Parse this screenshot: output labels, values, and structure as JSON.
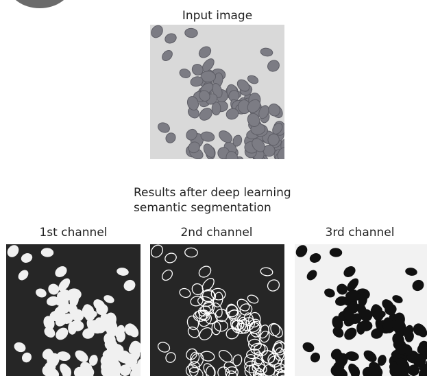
{
  "input_title": "Input image",
  "results_title": [
    "Results after deep learning",
    "semantic segmentation"
  ],
  "channels": [
    "1st channel",
    "2nd channel",
    "3rd channel"
  ]
}
